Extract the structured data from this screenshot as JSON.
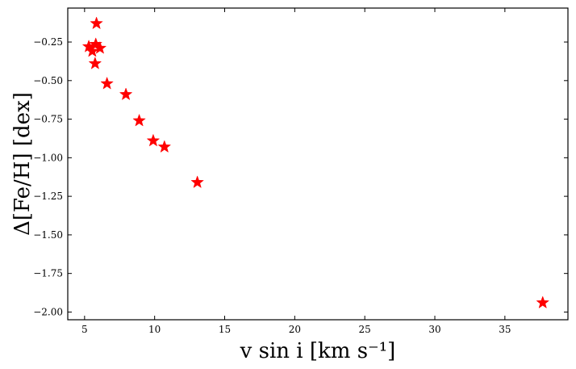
{
  "chart_data": {
    "type": "scatter",
    "title": "",
    "xlabel": "v sin i [km s⁻¹]",
    "ylabel": "Δ[Fe/H] [dex]",
    "xlim": [
      3.8,
      39.5
    ],
    "ylim": [
      -2.05,
      -0.03
    ],
    "x_ticks": [
      5,
      10,
      15,
      20,
      25,
      30,
      35
    ],
    "x_tick_labels": [
      "5",
      "10",
      "15",
      "20",
      "25",
      "30",
      "35"
    ],
    "y_ticks": [
      -0.25,
      -0.5,
      -0.75,
      -1.0,
      -1.25,
      -1.5,
      -1.75,
      -2.0
    ],
    "y_tick_labels": [
      "−0.25",
      "−0.50",
      "−0.75",
      "−1.00",
      "−1.25",
      "−1.50",
      "−1.75",
      "−2.00"
    ],
    "grid": false,
    "marker": "star",
    "marker_color": "#ff0000",
    "series": [
      {
        "points": [
          {
            "x": 5.85,
            "y": -0.13
          },
          {
            "x": 5.3,
            "y": -0.28
          },
          {
            "x": 5.55,
            "y": -0.31
          },
          {
            "x": 5.8,
            "y": -0.265
          },
          {
            "x": 6.1,
            "y": -0.29
          },
          {
            "x": 5.75,
            "y": -0.39
          },
          {
            "x": 6.6,
            "y": -0.52
          },
          {
            "x": 7.95,
            "y": -0.59
          },
          {
            "x": 8.9,
            "y": -0.76
          },
          {
            "x": 9.9,
            "y": -0.89
          },
          {
            "x": 10.7,
            "y": -0.93
          },
          {
            "x": 13.05,
            "y": -1.16
          },
          {
            "x": 37.7,
            "y": -1.94
          }
        ]
      }
    ]
  }
}
